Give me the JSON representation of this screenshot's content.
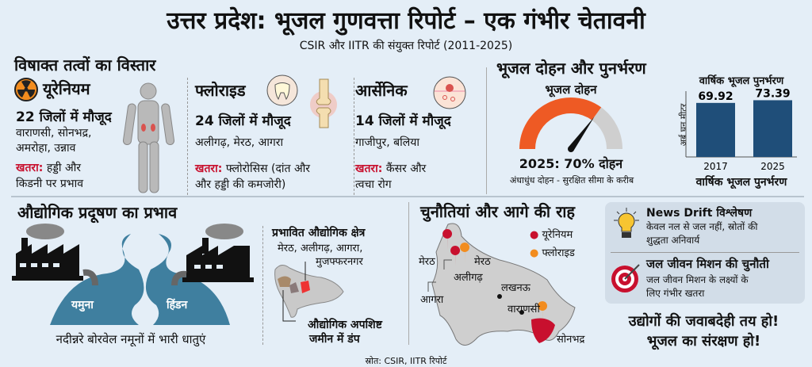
{
  "title": "उत्तर प्रदेश: भूजल गुणवत्ता रिपोर्ट – एक गंभीर चेतावनी",
  "subtitle": "CSIR और IITR की संयुक्त रिपोर्ट (2011-2025)",
  "toxins": {
    "heading": "विषाक्त तत्वों का विस्तार",
    "danger_label": "खतरा:",
    "items": [
      {
        "name": "यूरेनियम",
        "count": "22 जिलों में मौजूद",
        "cities_1": "वाराणसी, सोनभद्र,",
        "cities_2": "अमरोहा, उन्नाव",
        "danger_1": " हड्डी और",
        "danger_2": "किडनी पर प्रभाव",
        "icon": "radiation-icon"
      },
      {
        "name": "फ्लोराइड",
        "count": "24 जिलों में मौजूद",
        "cities_1": "अलीगढ़, मेरठ, आगरा",
        "danger_1": " फ्लोरोसिस (दांत और",
        "danger_2": "और हड्डी की कमजोरी)",
        "icon": "tooth-icon"
      },
      {
        "name": "आर्सेनिक",
        "count": "14 जिलों में मौजूद",
        "cities_1": "गाजीपुर, बलिया",
        "danger_1": " कैंसर और",
        "danger_2": "त्वचा रोग",
        "icon": "skin-icon"
      }
    ]
  },
  "groundwater": {
    "heading": "भूजल दोहन और पुनर्भरण",
    "gauge_title": "भूजल दोहन",
    "gauge_value_percent": 70,
    "gauge_colors": {
      "filled": "#ee5a24",
      "empty": "#cfcfcf"
    },
    "gauge_label": "2025: 70% दोहन",
    "gauge_note": "अंधाधुंध दोहन - सुरक्षित सीमा के करीब"
  },
  "chart_data": {
    "type": "bar",
    "title": "वार्षिक भूजल पुनर्भरण",
    "xlabel": "वार्षिक भूजल पुनर्भरण",
    "ylabel": "अर्ब घन मीटर",
    "categories": [
      "2017",
      "2025"
    ],
    "values": [
      69.92,
      73.39
    ],
    "value_labels": [
      "69.92",
      "73.39"
    ],
    "ylim": [
      0,
      80
    ],
    "bar_color": "#1f4e79",
    "grid": false
  },
  "industry": {
    "heading": "औद्योगिक प्रदूषण का प्रभाव",
    "rivers": [
      "यमुना",
      "हिंडन"
    ],
    "caption": "नदीन्नरे बोरवेल नमूनों में भारी धातुएं",
    "affected_heading": "प्रभावित औद्योगिक क्षेत्र",
    "affected_1": "मेरठ, अलीगढ़, आगरा,",
    "affected_2": "मुजफ्फरनगर",
    "dump_1": "औद्योगिक अपशिष्ट",
    "dump_2": "जमीन में डंप"
  },
  "challenges": {
    "heading": "चुनौतियां और आगे की राह",
    "legend": [
      {
        "label": "यूरेनियम",
        "color": "#c8102e"
      },
      {
        "label": "फ्लोराइड",
        "color": "#f28c1e"
      }
    ],
    "places": [
      "मेरठ",
      "मेरठ",
      "अलीगढ़",
      "आगरा",
      "लखनऊ",
      "वाराणसी",
      "सोनभद्र"
    ]
  },
  "analysis": {
    "title": "News Drift विश्लेषण",
    "text_1": "केवल नल से जल नहीं, स्रोतों की",
    "text_2": "शुद्धता अनिवार्य",
    "mission_title": "जल जीवन मिशन की चुनौती",
    "mission_1": "जल जीवन मिशन के लक्ष्यों के",
    "mission_2": "लिए गंभीर खतरा"
  },
  "slogan_1": "उद्योगों की जवाबदेही तय हो!",
  "slogan_2": "भूजल का संरक्षण हो!",
  "source": "स्रोत: CSIR, IITR रिपोर्ट"
}
